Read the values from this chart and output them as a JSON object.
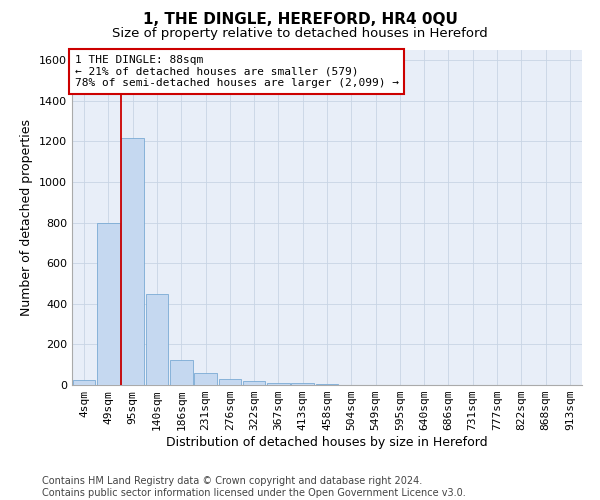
{
  "title": "1, THE DINGLE, HEREFORD, HR4 0QU",
  "subtitle": "Size of property relative to detached houses in Hereford",
  "xlabel": "Distribution of detached houses by size in Hereford",
  "ylabel": "Number of detached properties",
  "bin_labels": [
    "4sqm",
    "49sqm",
    "95sqm",
    "140sqm",
    "186sqm",
    "231sqm",
    "276sqm",
    "322sqm",
    "367sqm",
    "413sqm",
    "458sqm",
    "504sqm",
    "549sqm",
    "595sqm",
    "640sqm",
    "686sqm",
    "731sqm",
    "777sqm",
    "822sqm",
    "868sqm",
    "913sqm"
  ],
  "bar_heights": [
    25,
    800,
    1215,
    450,
    125,
    60,
    28,
    18,
    12,
    10,
    5,
    0,
    0,
    0,
    0,
    0,
    0,
    0,
    0,
    0,
    0
  ],
  "bar_color": "#c5d8f0",
  "bar_edge_color": "#7aaad4",
  "vline_color": "#cc0000",
  "vline_x_idx": 1.5,
  "annotation_text": "1 THE DINGLE: 88sqm\n← 21% of detached houses are smaller (579)\n78% of semi-detached houses are larger (2,099) →",
  "annotation_box_edgecolor": "#cc0000",
  "ylim": [
    0,
    1650
  ],
  "yticks": [
    0,
    200,
    400,
    600,
    800,
    1000,
    1200,
    1400,
    1600
  ],
  "grid_color": "#c8d4e4",
  "bg_color": "#e8eef8",
  "footer_line1": "Contains HM Land Registry data © Crown copyright and database right 2024.",
  "footer_line2": "Contains public sector information licensed under the Open Government Licence v3.0.",
  "title_fontsize": 11,
  "subtitle_fontsize": 9.5,
  "xlabel_fontsize": 9,
  "ylabel_fontsize": 9,
  "tick_fontsize": 8,
  "annot_fontsize": 8,
  "footer_fontsize": 7
}
